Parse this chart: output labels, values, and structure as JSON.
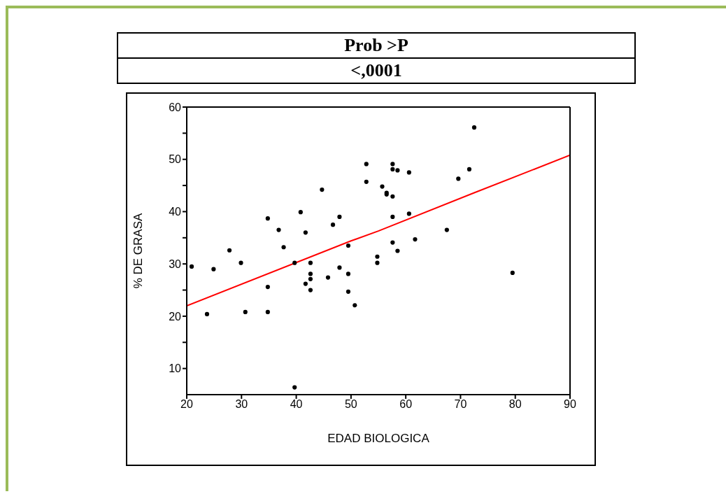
{
  "chart_data": {
    "type": "scatter",
    "xlabel": "EDAD BIOLOGICA",
    "ylabel": "% DE GRASA",
    "annotations": [
      "Prob >P",
      "<,0001"
    ],
    "xlim": [
      20,
      90
    ],
    "xticks": [
      20,
      30,
      40,
      50,
      60,
      70,
      80,
      90
    ],
    "ylim": [
      5,
      60
    ],
    "yticks": [
      10,
      {
        "value": 15,
        "label": null
      },
      20,
      {
        "value": 25,
        "label": null
      },
      30,
      {
        "value": 35,
        "label": null
      },
      40,
      {
        "value": 45,
        "label": null
      },
      50,
      {
        "value": 55,
        "label": null
      },
      60
    ],
    "legend": false,
    "marker": "circle",
    "series": [
      {
        "color": "#000000",
        "x": [
          20.9,
          23.7,
          24.9,
          27.8,
          29.9,
          30.7,
          34.8,
          34.8,
          34.8,
          36.8,
          37.7,
          39.7,
          39.7,
          40.8,
          41.7,
          41.7,
          42.6,
          42.6,
          42.6,
          42.6,
          44.7,
          45.8,
          46.7,
          47.9,
          47.9,
          49.5,
          49.5,
          49.5,
          50.7,
          52.8,
          52.8,
          54.8,
          54.8,
          55.7,
          56.5,
          56.5,
          57.6,
          57.6,
          57.6,
          57.6,
          57.6,
          58.5,
          58.5,
          60.6,
          60.6,
          61.7,
          67.5,
          69.6,
          71.6,
          72.5,
          79.5
        ],
        "values": [
          29.5,
          20.4,
          29.0,
          32.6,
          30.2,
          20.8,
          38.7,
          25.6,
          20.8,
          36.5,
          33.2,
          30.2,
          6.4,
          39.9,
          36.0,
          26.2,
          30.2,
          28.1,
          27.1,
          25.0,
          44.2,
          27.4,
          37.5,
          39.0,
          29.3,
          33.5,
          28.1,
          24.7,
          22.1,
          49.1,
          45.7,
          31.4,
          30.2,
          44.8,
          43.6,
          43.3,
          49.1,
          48.1,
          42.9,
          39.0,
          34.1,
          47.9,
          32.5,
          47.5,
          39.6,
          34.7,
          36.5,
          46.3,
          48.1,
          56.1,
          28.3
        ]
      },
      {
        "type": "line",
        "color": "#ff0000",
        "marker": "none",
        "line_style": "solid",
        "x": [
          20,
          50,
          55,
          72.5,
          90
        ],
        "values": [
          22.0,
          34.4,
          36.3,
          43.6,
          50.8
        ]
      }
    ]
  }
}
